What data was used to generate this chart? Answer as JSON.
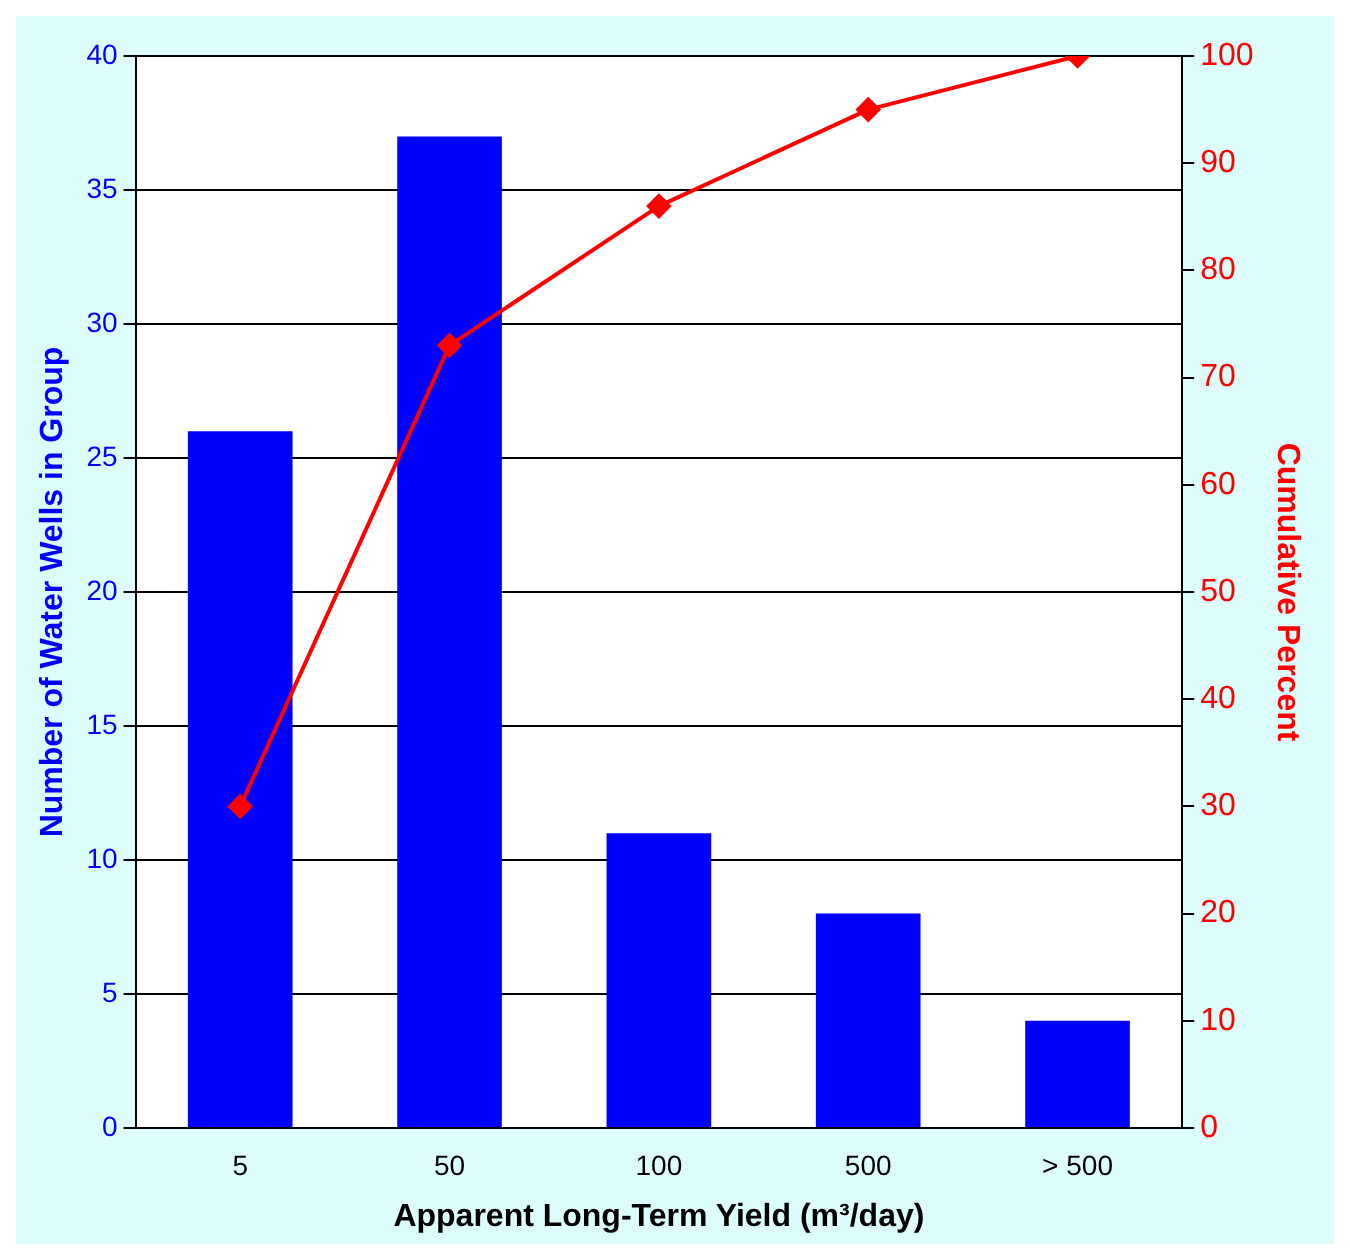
{
  "chart_data": {
    "type": "bar",
    "xlabel": "Apparent Long-Term Yield (m³/day)",
    "ylabel": "Number of Water Wells in Group",
    "y2label": "Cumulative Percent",
    "categories": [
      "5",
      "50",
      "100",
      "500",
      "> 500"
    ],
    "series": [
      {
        "color": "#0000ff",
        "values": [
          26,
          37,
          11,
          8,
          4
        ]
      },
      {
        "type": "line",
        "axis": "y2",
        "color": "#ff0000",
        "marker": "diamond",
        "values": [
          30,
          73,
          86,
          95,
          100
        ]
      }
    ],
    "ylim": [
      0,
      40
    ],
    "yticks": [
      0,
      5,
      10,
      15,
      20,
      25,
      30,
      35,
      40
    ],
    "y2lim": [
      0,
      100
    ],
    "y2ticks": [
      0,
      10,
      20,
      30,
      40,
      50,
      60,
      70,
      80,
      90,
      100
    ],
    "grid": "y",
    "legend": false
  }
}
